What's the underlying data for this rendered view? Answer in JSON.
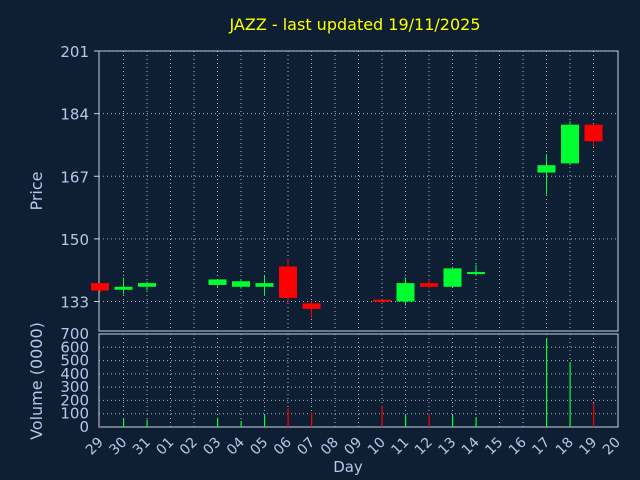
{
  "chart_data": [
    {
      "type": "candlestick",
      "title": "JAZZ - last updated 19/11/2025",
      "ylabel": "Price",
      "ylim": [
        125,
        201
      ],
      "yticks": [
        201,
        184,
        167,
        150,
        133
      ],
      "grid": true,
      "x_tick_labels": [
        "29",
        "30",
        "31",
        "01",
        "02",
        "03",
        "04",
        "05",
        "06",
        "07",
        "08",
        "09",
        "10",
        "11",
        "12",
        "13",
        "14",
        "15",
        "16",
        "17",
        "18",
        "19",
        "20"
      ],
      "candles": [
        {
          "day": "29",
          "x": 0,
          "open": 138.0,
          "close": 136.0,
          "high": 138.0,
          "low": 135.5
        },
        {
          "day": "30",
          "x": 1,
          "open": 136.2,
          "close": 137.0,
          "high": 139.5,
          "low": 135.0
        },
        {
          "day": "31",
          "x": 2,
          "open": 137.0,
          "close": 138.0,
          "high": 138.5,
          "low": 136.0
        },
        {
          "day": "03",
          "x": 5,
          "open": 137.5,
          "close": 139.0,
          "high": 139.0,
          "low": 137.0
        },
        {
          "day": "04",
          "x": 6,
          "open": 137.0,
          "close": 138.5,
          "high": 139.0,
          "low": 136.5
        },
        {
          "day": "05",
          "x": 7,
          "open": 137.0,
          "close": 138.0,
          "high": 140.0,
          "low": 134.5
        },
        {
          "day": "06",
          "x": 8,
          "open": 142.5,
          "close": 134.0,
          "high": 144.5,
          "low": 132.5
        },
        {
          "day": "07",
          "x": 9,
          "open": 132.5,
          "close": 131.0,
          "high": 133.0,
          "low": 128.5
        },
        {
          "day": "10",
          "x": 12,
          "open": 133.5,
          "close": 133.0,
          "high": 133.5,
          "low": 132.5
        },
        {
          "day": "11",
          "x": 13,
          "open": 133.0,
          "close": 138.0,
          "high": 139.5,
          "low": 132.0
        },
        {
          "day": "12",
          "x": 14,
          "open": 138.0,
          "close": 137.0,
          "high": 139.0,
          "low": 136.5
        },
        {
          "day": "13",
          "x": 15,
          "open": 137.0,
          "close": 142.0,
          "high": 142.0,
          "low": 137.0
        },
        {
          "day": "14",
          "x": 16,
          "open": 140.5,
          "close": 141.0,
          "high": 143.0,
          "low": 140.0
        },
        {
          "day": "17",
          "x": 19,
          "open": 168.0,
          "close": 170.0,
          "high": 173.0,
          "low": 162.0
        },
        {
          "day": "18",
          "x": 20,
          "open": 170.5,
          "close": 181.0,
          "high": 182.0,
          "low": 170.0
        },
        {
          "day": "19",
          "x": 21,
          "open": 181.0,
          "close": 176.5,
          "high": 181.0,
          "low": 175.0
        }
      ],
      "colors": {
        "up": "#00ff30",
        "down": "#ff0000",
        "title": "#ffff00"
      }
    },
    {
      "type": "bar",
      "ylabel": "Volume (0000)",
      "xlabel": "Day",
      "ylim": [
        0,
        700
      ],
      "yticks": [
        700,
        600,
        500,
        400,
        300,
        200,
        100,
        0
      ],
      "grid": true,
      "bars": [
        {
          "day": "29",
          "x": 0,
          "value": 8,
          "dir": "down"
        },
        {
          "day": "30",
          "x": 1,
          "value": 60,
          "dir": "up"
        },
        {
          "day": "31",
          "x": 2,
          "value": 55,
          "dir": "up"
        },
        {
          "day": "03",
          "x": 5,
          "value": 70,
          "dir": "up"
        },
        {
          "day": "04",
          "x": 6,
          "value": 45,
          "dir": "up"
        },
        {
          "day": "05",
          "x": 7,
          "value": 95,
          "dir": "up"
        },
        {
          "day": "06",
          "x": 8,
          "value": 140,
          "dir": "down"
        },
        {
          "day": "07",
          "x": 9,
          "value": 110,
          "dir": "down"
        },
        {
          "day": "10",
          "x": 12,
          "value": 160,
          "dir": "down"
        },
        {
          "day": "11",
          "x": 13,
          "value": 95,
          "dir": "up"
        },
        {
          "day": "12",
          "x": 14,
          "value": 100,
          "dir": "down"
        },
        {
          "day": "13",
          "x": 15,
          "value": 90,
          "dir": "up"
        },
        {
          "day": "14",
          "x": 16,
          "value": 75,
          "dir": "up"
        },
        {
          "day": "17",
          "x": 19,
          "value": 670,
          "dir": "up"
        },
        {
          "day": "18",
          "x": 20,
          "value": 490,
          "dir": "up"
        },
        {
          "day": "19",
          "x": 21,
          "value": 180,
          "dir": "down"
        }
      ]
    }
  ],
  "colors": {
    "background": "#0f1f33",
    "axis_text": "#b4c8e8",
    "grid": "#a8b4c8",
    "axis_line": "#c8d2e0"
  }
}
